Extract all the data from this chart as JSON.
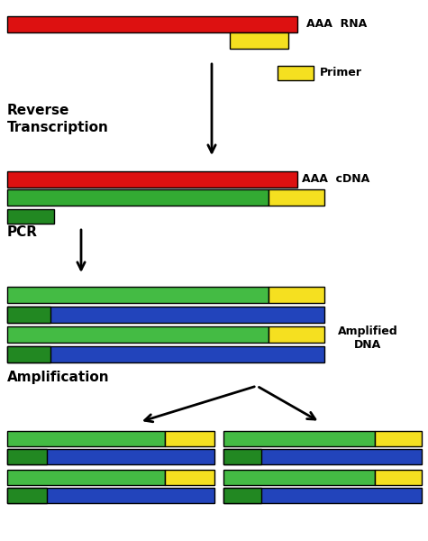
{
  "bg_color": "#ffffff",
  "colors": {
    "red": "#dd1111",
    "yellow": "#f5e020",
    "green": "#33aa33",
    "dark_green": "#228822",
    "blue": "#2244bb",
    "light_green": "#44bb44"
  },
  "rna_label": "AAA  RNA",
  "cdna_label": "AAA  cDNA",
  "primer_label": "Primer",
  "reverse_transcription_label": "Reverse\nTranscription",
  "pcr_label": "PCR",
  "amplification_label": "Amplification",
  "amplified_dna_label": "Amplified\nDNA"
}
